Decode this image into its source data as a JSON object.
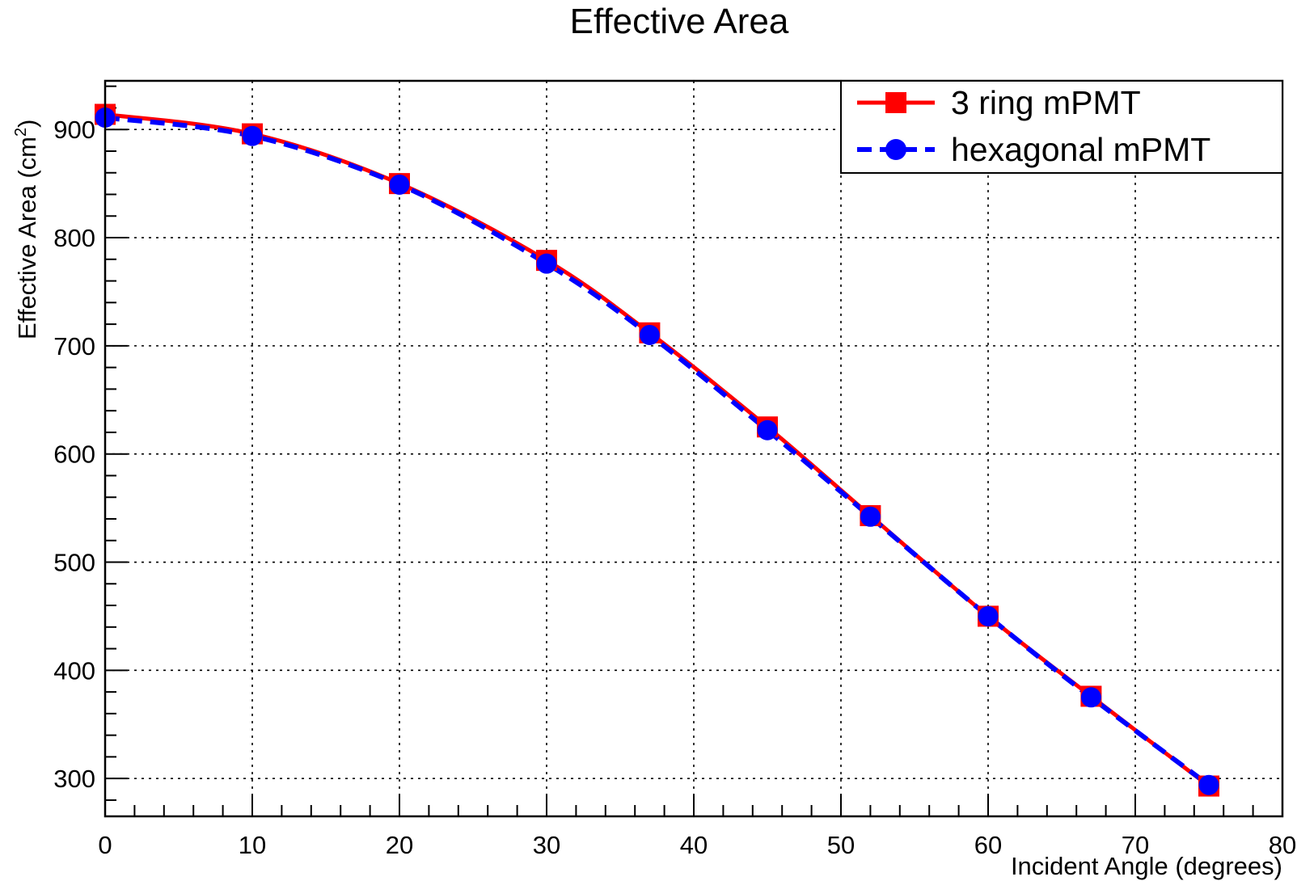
{
  "chart_data": {
    "type": "line",
    "title": "Effective Area",
    "xlabel": "Incident Angle (degrees)",
    "ylabel_main": "Effective Area (cm",
    "ylabel_sup": "2",
    "ylabel_end": ")",
    "xlim": [
      0,
      80
    ],
    "ylim": [
      265,
      945
    ],
    "x_ticks": [
      0,
      10,
      20,
      30,
      40,
      50,
      60,
      70,
      80
    ],
    "y_ticks": [
      300,
      400,
      500,
      600,
      700,
      800,
      900
    ],
    "grid": true,
    "legend_position": "top-right",
    "x": [
      0,
      10,
      20,
      30,
      37,
      45,
      52,
      60,
      67,
      75
    ],
    "series": [
      {
        "name": "3 ring mPMT",
        "color": "#ff0000",
        "marker": "square",
        "line_style": "solid",
        "values": [
          914,
          896,
          850,
          779,
          712,
          625,
          543,
          450,
          376,
          293
        ]
      },
      {
        "name": "hexagonal mPMT",
        "color": "#0000ff",
        "marker": "circle",
        "line_style": "dashed",
        "values": [
          911,
          894,
          849,
          776,
          710,
          622,
          542,
          450,
          375,
          294
        ]
      }
    ]
  }
}
